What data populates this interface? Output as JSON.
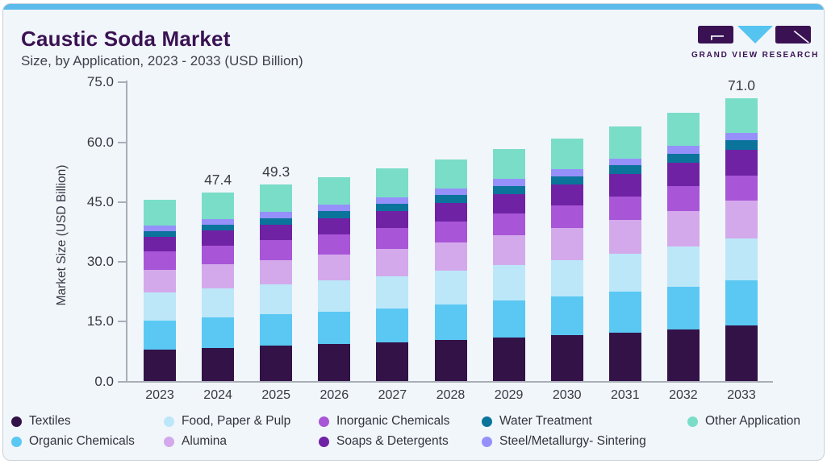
{
  "page": {
    "title": "Caustic Soda Market",
    "subtitle": "Size, by Application, 2023 - 2033 (USD Billion)"
  },
  "logo": {
    "text": "GRAND VIEW RESEARCH",
    "brand_purple": "#3A1253",
    "brand_blue": "#55C4F0"
  },
  "chart_data": {
    "type": "bar",
    "stacked": true,
    "title": "Caustic Soda Market Size, by Application, 2023 - 2033 (USD Billion)",
    "ylabel": "Market Size (USD Billion)",
    "xlabel": "",
    "ylim": [
      0,
      75
    ],
    "grid": false,
    "legend_position": "bottom",
    "yticks": [
      "0.0",
      "15.0",
      "30.0",
      "45.0",
      "60.0",
      "75.0"
    ],
    "categories": [
      "2023",
      "2024",
      "2025",
      "2026",
      "2027",
      "2028",
      "2029",
      "2030",
      "2031",
      "2032",
      "2033"
    ],
    "total_labels": {
      "2024": "47.4",
      "2025": "49.3",
      "2033": "71.0"
    },
    "totals": [
      45.6,
      47.4,
      49.3,
      51.25,
      53.4,
      55.7,
      58.25,
      61.0,
      63.95,
      67.3,
      71.0
    ],
    "series": [
      {
        "name": "Textiles",
        "color": "#331248",
        "values": [
          8.0,
          8.4,
          8.9,
          9.3,
          9.8,
          10.4,
          11.0,
          11.6,
          12.3,
          13.1,
          14.0
        ]
      },
      {
        "name": "Organic Chemicals",
        "color": "#5AC8F3",
        "values": [
          7.3,
          7.6,
          7.9,
          8.2,
          8.5,
          8.9,
          9.3,
          9.7,
          10.2,
          10.7,
          11.3
        ]
      },
      {
        "name": "Food, Paper & Pulp",
        "color": "#BCE7F9",
        "values": [
          7.0,
          7.3,
          7.5,
          7.8,
          8.1,
          8.4,
          8.8,
          9.2,
          9.6,
          10.1,
          10.6
        ]
      },
      {
        "name": "Alumina",
        "color": "#D3A9EB",
        "values": [
          5.7,
          6.0,
          6.2,
          6.5,
          6.9,
          7.2,
          7.6,
          8.0,
          8.4,
          8.9,
          9.4
        ]
      },
      {
        "name": "Inorganic Chemicals",
        "color": "#A855D8",
        "values": [
          4.6,
          4.7,
          4.9,
          5.0,
          5.2,
          5.3,
          5.5,
          5.7,
          5.9,
          6.1,
          6.4
        ]
      },
      {
        "name": "Soaps & Detergents",
        "color": "#7022A5",
        "values": [
          3.7,
          3.8,
          3.95,
          4.05,
          4.2,
          4.5,
          4.75,
          5.1,
          5.55,
          5.95,
          6.4
        ]
      },
      {
        "name": "Water Treatment",
        "color": "#0B749B",
        "values": [
          1.3,
          1.5,
          1.6,
          1.8,
          1.9,
          2.0,
          2.1,
          2.15,
          2.2,
          2.3,
          2.4
        ]
      },
      {
        "name": "Steel/Metallurgy- Sintering",
        "color": "#9590FA",
        "values": [
          1.5,
          1.5,
          1.55,
          1.6,
          1.6,
          1.7,
          1.7,
          1.75,
          1.8,
          1.85,
          1.9
        ]
      },
      {
        "name": "Other Application",
        "color": "#7ADDC8",
        "values": [
          6.5,
          6.6,
          6.8,
          7.0,
          7.2,
          7.3,
          7.5,
          7.8,
          8.0,
          8.3,
          8.6
        ]
      }
    ]
  }
}
